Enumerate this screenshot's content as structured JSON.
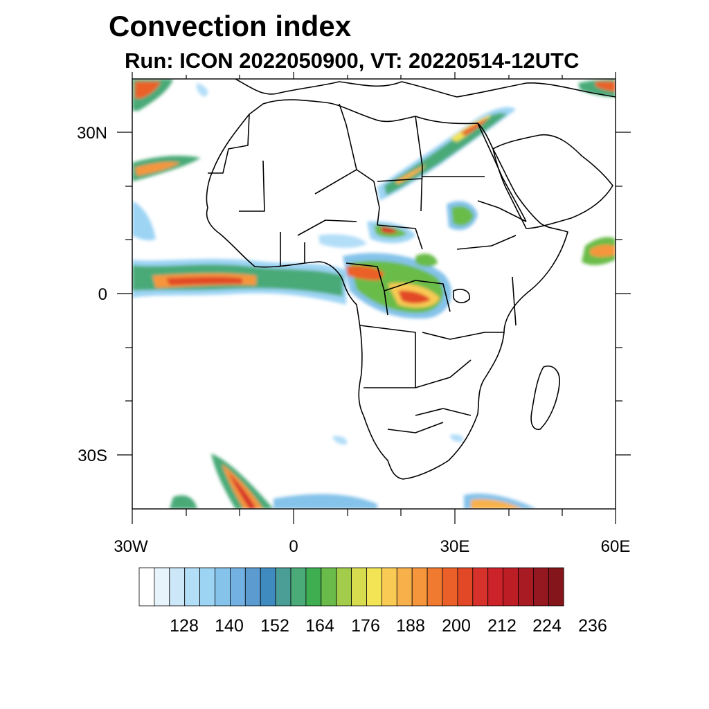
{
  "title": "Convection index",
  "subtitle": "Run: ICON 2022050900,  VT: 20220514-12UTC",
  "axes": {
    "lon_labels": [
      "30W",
      "0",
      "30E",
      "60E"
    ],
    "lat_labels": [
      "30N",
      "0",
      "30S"
    ]
  },
  "colorbar": {
    "labels": [
      "128",
      "140",
      "152",
      "164",
      "176",
      "188",
      "200",
      "212",
      "224",
      "236"
    ],
    "colors": [
      "#ffffff",
      "#e8f4fc",
      "#cce7f8",
      "#b3def8",
      "#9dd4f4",
      "#85c3ea",
      "#72b1e1",
      "#5b9bd0",
      "#3f8bc0",
      "#4a9e96",
      "#4aaa78",
      "#3fae50",
      "#6abc4a",
      "#a2cc4a",
      "#d7dc4e",
      "#f2e455",
      "#f9cb55",
      "#f8b14a",
      "#f5963c",
      "#f07a30",
      "#ea6028",
      "#e24826",
      "#d6322b",
      "#cc2229",
      "#bd1d25",
      "#a91b22",
      "#951820",
      "#84161b"
    ]
  },
  "layers": {
    "land": "#ffffff",
    "border_color": "#000000"
  }
}
